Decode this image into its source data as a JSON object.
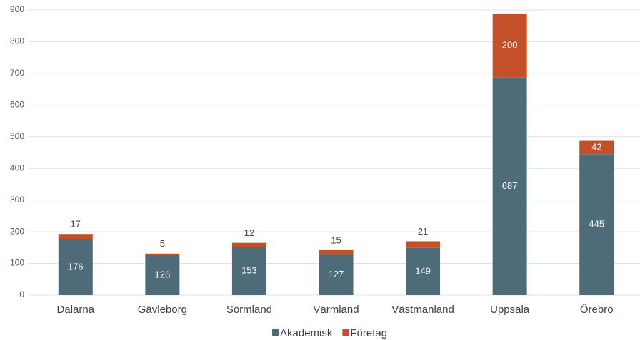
{
  "chart_data": {
    "type": "stacked_bar",
    "categories": [
      "Dalarna",
      "Gävleborg",
      "Sörmland",
      "Värmland",
      "Västmanland",
      "Uppsala",
      "Örebro"
    ],
    "series": [
      {
        "name": "Akademisk",
        "color": "#4e6b7a",
        "values": [
          176,
          126,
          153,
          127,
          149,
          687,
          445
        ]
      },
      {
        "name": "Företag",
        "color": "#c4502a",
        "values": [
          17,
          5,
          12,
          15,
          21,
          200,
          42
        ]
      }
    ],
    "ylim": [
      0,
      900
    ],
    "yticks": [
      0,
      100,
      200,
      300,
      400,
      500,
      600,
      700,
      800,
      900
    ],
    "grid": true,
    "legend": "bottom"
  }
}
